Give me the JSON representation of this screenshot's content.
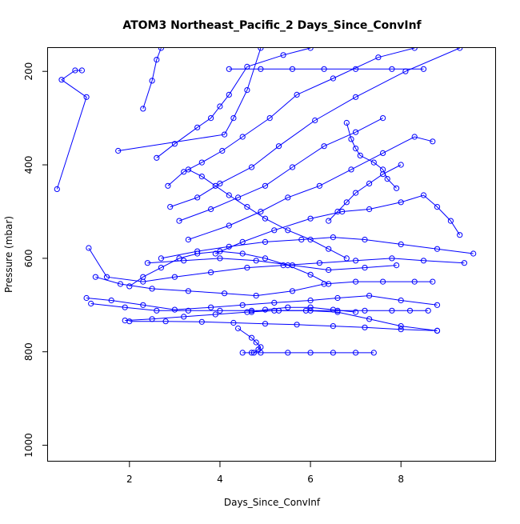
{
  "chart_data": {
    "type": "line",
    "title": "ATOM3 Northeast_Pacific_2 Days_Since_ConvInf",
    "xlabel": "Days_Since_ConvInf",
    "ylabel": "Pressure (mbar)",
    "x_ticks": [
      2,
      4,
      6,
      8
    ],
    "y_ticks": [
      200,
      400,
      600,
      800,
      1000
    ],
    "xlim": [
      0.2,
      10.1
    ],
    "ylim": [
      1035,
      150
    ],
    "y_reversed": true,
    "grid": false,
    "legend": "none",
    "color": "#0000ff",
    "series": [
      {
        "x": [
          0.4,
          1.05,
          0.5,
          0.8,
          0.95
        ],
        "y": [
          452,
          255,
          218,
          198,
          198
        ]
      },
      {
        "x": [
          1.75,
          4.1,
          4.3,
          4.6,
          4.9
        ],
        "y": [
          370,
          335,
          300,
          240,
          150
        ]
      },
      {
        "x": [
          2.3,
          2.5,
          2.6,
          2.7
        ],
        "y": [
          280,
          220,
          175,
          150
        ]
      },
      {
        "x": [
          2.6,
          3.0,
          3.5,
          3.8,
          4.0,
          4.2,
          4.6,
          5.4,
          6.0
        ],
        "y": [
          385,
          355,
          320,
          300,
          275,
          250,
          190,
          165,
          150
        ]
      },
      {
        "x": [
          2.85,
          3.2,
          3.6,
          4.05,
          4.5,
          5.1,
          5.7,
          6.5,
          7.5,
          8.3
        ],
        "y": [
          445,
          415,
          395,
          370,
          340,
          300,
          250,
          215,
          170,
          150
        ]
      },
      {
        "x": [
          2.9,
          3.5,
          4.0,
          4.7,
          5.3,
          6.1,
          7.0,
          8.1,
          9.3
        ],
        "y": [
          490,
          470,
          440,
          405,
          360,
          305,
          255,
          200,
          150
        ]
      },
      {
        "x": [
          3.1,
          3.8,
          4.4,
          5.0,
          5.6,
          6.3,
          7.0,
          7.6
        ],
        "y": [
          520,
          495,
          470,
          445,
          405,
          360,
          330,
          300
        ]
      },
      {
        "x": [
          3.3,
          4.2,
          4.9,
          5.5,
          6.2,
          6.9,
          7.6,
          8.3,
          8.7
        ],
        "y": [
          560,
          530,
          500,
          470,
          445,
          410,
          375,
          340,
          350
        ]
      },
      {
        "x": [
          3.9,
          4.5,
          5.2,
          6.0,
          6.7,
          7.3,
          8.0,
          8.5,
          8.8,
          9.1,
          9.3
        ],
        "y": [
          590,
          565,
          540,
          515,
          500,
          495,
          480,
          465,
          490,
          520,
          550
        ]
      },
      {
        "x": [
          2.7,
          3.5,
          4.2,
          5.0,
          5.8,
          6.5,
          7.2,
          8.0,
          8.8,
          9.6
        ],
        "y": [
          600,
          585,
          575,
          565,
          560,
          555,
          560,
          570,
          580,
          590
        ]
      },
      {
        "x": [
          2.4,
          3.2,
          4.0,
          4.8,
          5.6,
          6.4,
          7.2,
          7.9
        ],
        "y": [
          610,
          605,
          600,
          605,
          615,
          625,
          620,
          615
        ]
      },
      {
        "x": [
          1.1,
          1.5,
          2.3,
          3.0,
          3.8,
          4.6,
          5.4,
          6.2,
          7.0,
          7.8,
          8.5,
          9.4
        ],
        "y": [
          578,
          640,
          650,
          640,
          630,
          620,
          615,
          610,
          605,
          600,
          605,
          610
        ]
      },
      {
        "x": [
          1.25,
          1.8,
          2.5,
          3.3,
          4.1,
          4.8,
          5.6,
          6.3,
          7.0,
          7.6,
          8.3,
          8.7
        ],
        "y": [
          640,
          655,
          665,
          670,
          675,
          680,
          670,
          655,
          650,
          650,
          650,
          650
        ]
      },
      {
        "x": [
          1.05,
          1.6,
          2.3,
          3.0,
          3.8,
          4.5,
          5.2,
          6.0,
          6.6,
          7.3,
          8.0,
          8.8
        ],
        "y": [
          685,
          690,
          700,
          710,
          705,
          700,
          695,
          690,
          685,
          680,
          690,
          700
        ]
      },
      {
        "x": [
          1.15,
          1.9,
          2.6,
          3.3,
          4.0,
          4.7,
          5.3,
          6.0,
          6.6,
          7.2,
          7.8,
          8.2,
          8.6
        ],
        "y": [
          697,
          705,
          712,
          712,
          712,
          712,
          712,
          712,
          712,
          712,
          712,
          712,
          712
        ]
      },
      {
        "x": [
          1.9,
          2.5,
          3.2,
          3.9,
          4.6,
          5.2,
          5.9,
          6.6,
          7.3,
          8.0,
          8.8
        ],
        "y": [
          733,
          730,
          725,
          720,
          715,
          712,
          712,
          715,
          730,
          745,
          755
        ]
      },
      {
        "x": [
          2.0,
          2.8,
          3.6,
          4.3,
          5.0,
          5.7,
          6.5,
          7.2,
          8.0,
          8.8
        ],
        "y": [
          735,
          735,
          736,
          738,
          740,
          742,
          745,
          748,
          752,
          755
        ]
      },
      {
        "x": [
          4.4,
          4.7,
          4.8,
          4.9,
          4.85,
          4.75
        ],
        "y": [
          750,
          770,
          780,
          790,
          795,
          802
        ]
      },
      {
        "x": [
          4.5,
          4.7,
          4.9,
          5.5,
          6.0,
          6.5,
          7.0,
          7.4
        ],
        "y": [
          802,
          802,
          802,
          802,
          802,
          802,
          802,
          802
        ]
      },
      {
        "x": [
          2.0,
          2.3,
          2.7,
          3.1,
          3.5,
          4.0,
          4.5,
          5.0,
          5.5,
          6.0,
          6.4
        ],
        "y": [
          660,
          640,
          620,
          600,
          590,
          585,
          590,
          600,
          615,
          635,
          655
        ]
      },
      {
        "x": [
          4.7,
          5.0,
          5.5,
          6.0,
          6.5,
          7.0
        ],
        "y": [
          715,
          710,
          705,
          705,
          710,
          715
        ]
      },
      {
        "x": [
          4.2,
          4.9,
          5.6,
          6.3,
          7.0,
          7.8,
          8.5
        ],
        "y": [
          195,
          195,
          195,
          195,
          195,
          195,
          195
        ]
      },
      {
        "x": [
          3.3,
          3.6,
          3.9,
          4.2,
          4.6,
          5.0,
          5.5,
          6.0,
          6.4,
          6.8
        ],
        "y": [
          410,
          425,
          445,
          465,
          490,
          515,
          540,
          560,
          580,
          600
        ]
      },
      {
        "x": [
          6.8,
          6.9,
          7.0,
          7.1,
          7.4,
          7.6,
          7.7,
          7.9
        ],
        "y": [
          310,
          345,
          365,
          380,
          395,
          410,
          430,
          450
        ]
      },
      {
        "x": [
          6.4,
          6.6,
          6.8,
          7.0,
          7.3,
          7.6,
          8.0
        ],
        "y": [
          520,
          500,
          480,
          460,
          440,
          420,
          400
        ]
      }
    ]
  }
}
